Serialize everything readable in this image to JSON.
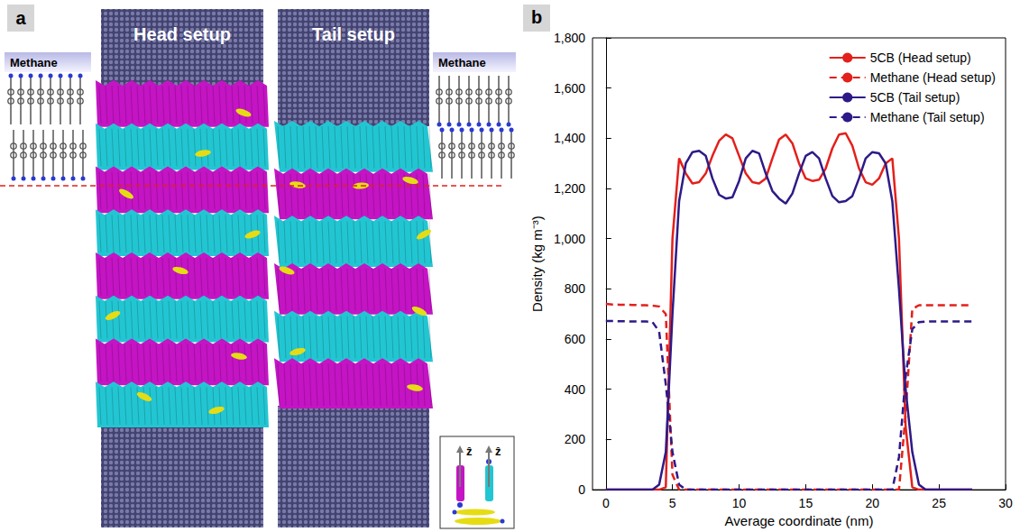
{
  "panel_a": {
    "label": "a",
    "left_inset": {
      "title": "Methane"
    },
    "columns": [
      {
        "title": "Head setup"
      },
      {
        "title": "Tail setup"
      }
    ],
    "right_inset": {
      "title": "Methane"
    },
    "axis_inset": {
      "labels": [
        "ẑ",
        "ẑ"
      ]
    }
  },
  "chart_data": {
    "panel_label": "b",
    "type": "line",
    "x_label": "Average coordinate (nm)",
    "y_label": "Density (kg m⁻³)",
    "xlim": [
      -1,
      30
    ],
    "xticks": [
      0,
      5,
      10,
      15,
      20,
      25,
      30
    ],
    "ylim": [
      0,
      1800
    ],
    "yticks": [
      0,
      200,
      400,
      600,
      800,
      1000,
      1200,
      1400,
      1600,
      1800
    ],
    "grid": false,
    "legend": "upper right",
    "x": [
      0,
      0.5,
      1,
      1.5,
      2,
      2.5,
      3,
      3.5,
      4,
      4.5,
      5,
      5.5,
      6,
      6.5,
      7,
      7.5,
      8,
      8.5,
      9,
      9.5,
      10,
      10.5,
      11,
      11.5,
      12,
      12.5,
      13,
      13.5,
      14,
      14.5,
      15,
      15.5,
      16,
      16.5,
      17,
      17.5,
      18,
      18.5,
      19,
      19.5,
      20,
      20.5,
      21,
      21.5,
      22,
      22.5,
      23,
      23.5,
      24,
      24.5,
      25,
      25.5,
      26,
      26.5,
      27,
      27.5
    ],
    "series": [
      {
        "name": "5CB (Head setup)",
        "color": "#e3201b",
        "line_style": "solid",
        "values": [
          0,
          0,
          0,
          0,
          0,
          0,
          0,
          0,
          0,
          10,
          1000,
          1320,
          1260,
          1220,
          1225,
          1260,
          1330,
          1390,
          1415,
          1400,
          1330,
          1260,
          1225,
          1220,
          1240,
          1320,
          1395,
          1415,
          1380,
          1300,
          1240,
          1230,
          1235,
          1280,
          1360,
          1415,
          1420,
          1370,
          1280,
          1225,
          1215,
          1240,
          1300,
          1320,
          1000,
          250,
          10,
          0,
          0,
          0,
          0,
          0,
          0,
          0,
          0,
          0
        ]
      },
      {
        "name": "Methane (Head setup)",
        "color": "#e3201b",
        "line_style": "dashed",
        "values": [
          740,
          738,
          737,
          737,
          736,
          735,
          735,
          733,
          730,
          700,
          60,
          0,
          0,
          0,
          0,
          0,
          0,
          0,
          0,
          0,
          0,
          0,
          0,
          0,
          0,
          0,
          0,
          0,
          0,
          0,
          0,
          0,
          0,
          0,
          0,
          0,
          0,
          0,
          0,
          0,
          0,
          0,
          0,
          0,
          0,
          300,
          720,
          735,
          735,
          735,
          735,
          735,
          735,
          735,
          735,
          735
        ]
      },
      {
        "name": "5CB (Tail setup)",
        "color": "#2e1a87",
        "line_style": "solid",
        "values": [
          0,
          0,
          0,
          0,
          0,
          0,
          0,
          0,
          20,
          150,
          700,
          1150,
          1300,
          1345,
          1350,
          1330,
          1240,
          1175,
          1160,
          1165,
          1230,
          1320,
          1350,
          1340,
          1260,
          1190,
          1160,
          1140,
          1180,
          1260,
          1330,
          1345,
          1320,
          1240,
          1170,
          1145,
          1150,
          1170,
          1240,
          1320,
          1345,
          1340,
          1300,
          1150,
          800,
          400,
          150,
          20,
          0,
          0,
          0,
          0,
          0,
          0,
          0,
          0
        ]
      },
      {
        "name": "Methane (Tail setup)",
        "color": "#2e1a87",
        "line_style": "dashed",
        "values": [
          672,
          672,
          671,
          671,
          670,
          670,
          670,
          668,
          630,
          420,
          150,
          20,
          0,
          0,
          0,
          0,
          0,
          0,
          0,
          0,
          0,
          0,
          0,
          0,
          0,
          0,
          0,
          0,
          0,
          0,
          0,
          0,
          0,
          0,
          0,
          0,
          0,
          0,
          0,
          0,
          0,
          0,
          0,
          0,
          130,
          450,
          640,
          668,
          670,
          670,
          670,
          670,
          670,
          670,
          670,
          670
        ]
      }
    ]
  }
}
